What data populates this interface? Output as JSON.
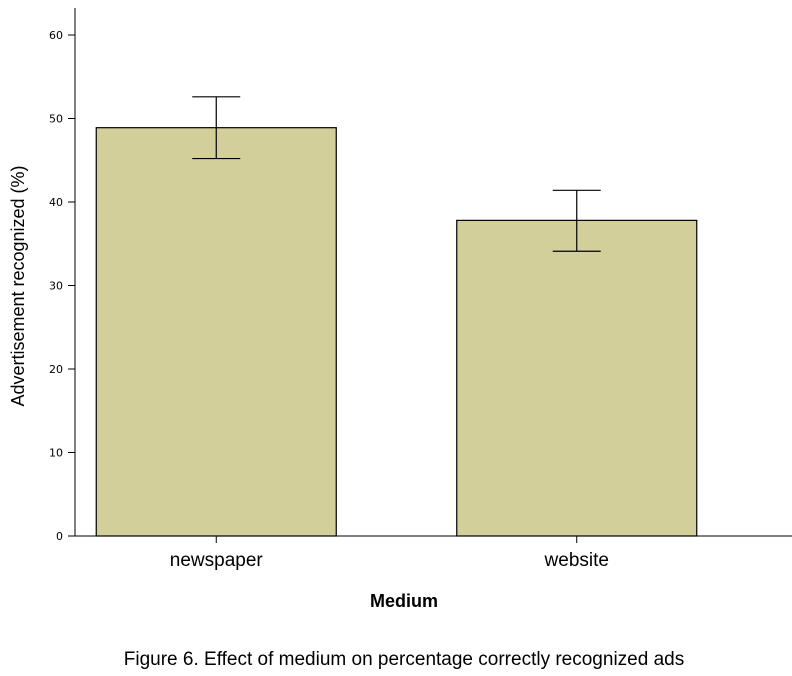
{
  "caption": "Figure 6. Effect of medium on percentage correctly recognized ads",
  "colors": {
    "bar_fill": "#d3cf9b",
    "bar_stroke": "#000000",
    "axis": "#000000"
  },
  "chart_data": {
    "type": "bar",
    "title": "",
    "xlabel": "Medium",
    "ylabel": "Advertisement recognized (%)",
    "categories": [
      "newspaper",
      "website"
    ],
    "values": [
      48.9,
      37.8
    ],
    "error_bars": [
      {
        "low": 45.2,
        "high": 52.6
      },
      {
        "low": 34.1,
        "high": 41.4
      }
    ],
    "ylim": [
      0,
      60
    ],
    "yticks": [
      "0",
      "10",
      "20",
      "30",
      "40",
      "50",
      "60"
    ],
    "grid": false,
    "legend": "none"
  }
}
